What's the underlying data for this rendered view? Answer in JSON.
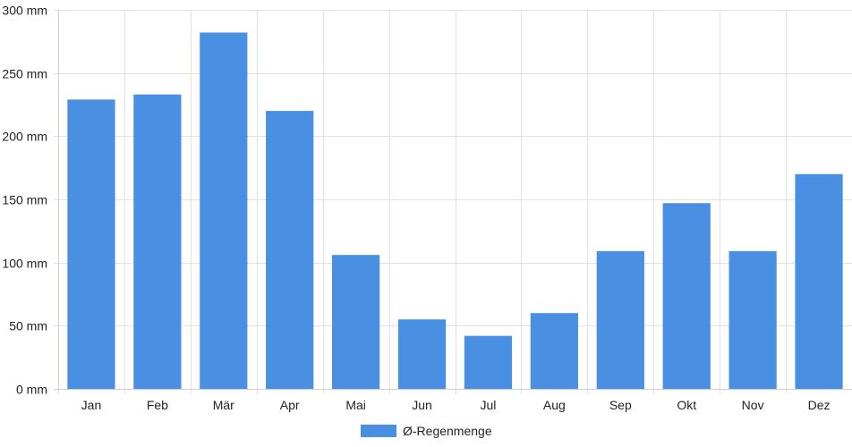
{
  "chart_data": {
    "type": "bar",
    "categories": [
      "Jan",
      "Feb",
      "Mär",
      "Apr",
      "Mai",
      "Jun",
      "Jul",
      "Aug",
      "Sep",
      "Okt",
      "Nov",
      "Dez"
    ],
    "series": [
      {
        "name": "Ø-Regenmenge",
        "color": "#4a90e2",
        "values": [
          229,
          233,
          282,
          220,
          106,
          55,
          42,
          60,
          109,
          147,
          109,
          170
        ]
      }
    ],
    "yticks": [
      "0 mm",
      "50 mm",
      "100 mm",
      "150 mm",
      "200 mm",
      "250 mm",
      "300 mm"
    ],
    "ylim": [
      0,
      300
    ],
    "grid": true,
    "legend_position": "bottom"
  }
}
